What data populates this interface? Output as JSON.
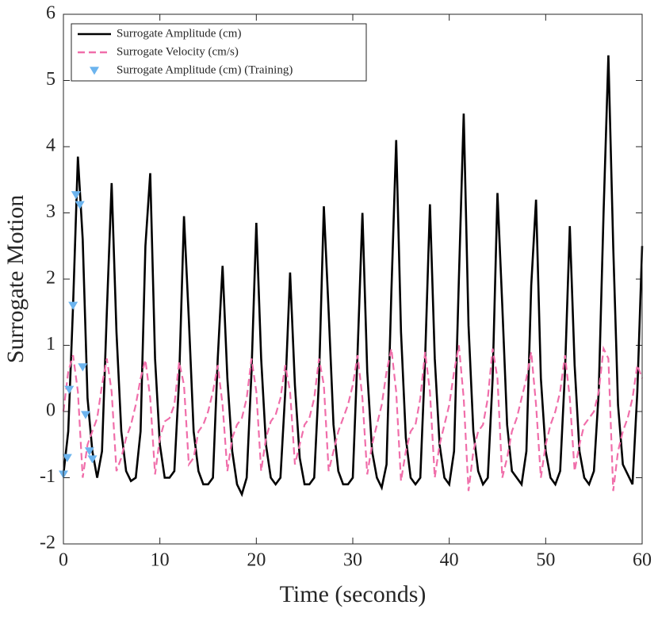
{
  "chart_data": {
    "type": "line",
    "xlabel": "Time (seconds)",
    "ylabel": "Surrogate Motion",
    "x": [
      0,
      0.5,
      1,
      1.5,
      2,
      2.5,
      3,
      3.5,
      4,
      4.5,
      5,
      5.5,
      6,
      6.5,
      7,
      7.5,
      8,
      8.5,
      9,
      9.5,
      10,
      10.5,
      11,
      11.5,
      12,
      12.5,
      13,
      13.5,
      14,
      14.5,
      15,
      15.5,
      16,
      16.5,
      17,
      17.5,
      18,
      18.5,
      19,
      19.5,
      20,
      20.5,
      21,
      21.5,
      22,
      22.5,
      23,
      23.5,
      24,
      24.5,
      25,
      25.5,
      26,
      26.5,
      27,
      27.5,
      28,
      28.5,
      29,
      29.5,
      30,
      30.5,
      31,
      31.5,
      32,
      32.5,
      33,
      33.5,
      34,
      34.5,
      35,
      35.5,
      36,
      36.5,
      37,
      37.5,
      38,
      38.5,
      39,
      39.5,
      40,
      40.5,
      41,
      41.5,
      42,
      42.5,
      43,
      43.5,
      44,
      44.5,
      45,
      45.5,
      46,
      46.5,
      47,
      47.5,
      48,
      48.5,
      49,
      49.5,
      50,
      50.5,
      51,
      51.5,
      52,
      52.5,
      53,
      53.5,
      54,
      54.5,
      55,
      55.5,
      56,
      56.5,
      57,
      57.5,
      58,
      58.5,
      59,
      59.5,
      60
    ],
    "series": [
      {
        "name": "Surrogate Amplitude (cm)",
        "color": "#000000",
        "dash": false,
        "values": [
          -0.95,
          -0.3,
          1.6,
          3.85,
          2.6,
          0.2,
          -0.6,
          -1.0,
          -0.6,
          1.5,
          3.45,
          1.2,
          -0.3,
          -0.9,
          -1.05,
          -1.0,
          -0.3,
          2.5,
          3.6,
          0.8,
          -0.5,
          -1.0,
          -1.0,
          -0.9,
          0.5,
          2.95,
          1.4,
          -0.3,
          -0.9,
          -1.1,
          -1.1,
          -1.0,
          0.8,
          2.2,
          0.5,
          -0.6,
          -1.1,
          -1.25,
          -1.0,
          0.6,
          2.85,
          0.8,
          -0.5,
          -1.0,
          -1.1,
          -1.0,
          0.3,
          2.1,
          0.4,
          -0.7,
          -1.1,
          -1.1,
          -1.0,
          0.5,
          3.1,
          1.5,
          -0.2,
          -0.9,
          -1.1,
          -1.1,
          -1.0,
          0.9,
          3.0,
          0.6,
          -0.6,
          -1.0,
          -1.15,
          -0.8,
          1.8,
          4.1,
          1.2,
          -0.4,
          -1.0,
          -1.1,
          -1.0,
          0.8,
          3.13,
          0.8,
          -0.5,
          -1.0,
          -1.1,
          -0.6,
          2.0,
          4.5,
          1.3,
          -0.3,
          -0.9,
          -1.1,
          -1.0,
          0.5,
          3.3,
          1.6,
          -0.2,
          -0.9,
          -1.0,
          -1.1,
          -0.6,
          1.9,
          3.2,
          0.5,
          -0.6,
          -1.0,
          -1.1,
          -0.9,
          0.6,
          2.8,
          0.7,
          -0.6,
          -1.0,
          -1.1,
          -0.9,
          0.3,
          3.0,
          5.38,
          2.5,
          0.1,
          -0.8,
          -0.95,
          -1.1,
          0.3,
          2.5
        ]
      },
      {
        "name": "Surrogate Velocity (cm/s)",
        "color": "#f06eaa",
        "dash": true,
        "values": [
          0.0,
          0.6,
          0.85,
          0.3,
          -1.0,
          -0.5,
          -0.3,
          -0.1,
          0.4,
          0.8,
          0.3,
          -0.9,
          -0.7,
          -0.4,
          -0.2,
          0.1,
          0.5,
          0.78,
          0.2,
          -0.95,
          -0.4,
          -0.15,
          -0.1,
          0.1,
          0.75,
          0.4,
          -0.8,
          -0.7,
          -0.3,
          -0.2,
          0.0,
          0.3,
          0.7,
          0.1,
          -0.9,
          -0.4,
          -0.2,
          -0.1,
          0.2,
          0.8,
          0.3,
          -0.9,
          -0.4,
          -0.15,
          -0.05,
          0.2,
          0.7,
          0.3,
          -0.8,
          -0.5,
          -0.2,
          -0.1,
          0.2,
          0.8,
          0.4,
          -0.9,
          -0.6,
          -0.3,
          -0.1,
          0.1,
          0.4,
          0.85,
          0.2,
          -0.95,
          -0.5,
          -0.2,
          0.1,
          0.6,
          0.95,
          0.3,
          -1.05,
          -0.6,
          -0.3,
          -0.2,
          0.2,
          0.9,
          0.3,
          -1.0,
          -0.5,
          -0.2,
          0.1,
          0.6,
          1.0,
          0.2,
          -1.2,
          -0.6,
          -0.3,
          -0.2,
          0.2,
          0.95,
          0.5,
          -1.0,
          -0.7,
          -0.3,
          -0.1,
          0.2,
          0.5,
          0.9,
          0.1,
          -1.0,
          -0.5,
          -0.2,
          0.0,
          0.3,
          0.85,
          0.2,
          -0.9,
          -0.5,
          -0.2,
          -0.1,
          0.0,
          0.3,
          0.95,
          0.8,
          -1.2,
          -0.6,
          -0.3,
          -0.1,
          0.2,
          0.7,
          0.5
        ]
      },
      {
        "name": "Surrogate Amplitude (cm) (Training)",
        "color": "#6cb4ee",
        "marker": "triangle-down",
        "x": [
          0.0,
          0.4,
          0.6,
          1.0,
          1.3,
          1.7,
          2.0,
          2.3,
          2.7,
          3.0
        ],
        "values": [
          -0.95,
          -0.7,
          0.33,
          1.6,
          3.27,
          3.12,
          0.67,
          -0.05,
          -0.6,
          -0.72
        ]
      }
    ],
    "xlim": [
      0,
      60
    ],
    "xticks": [
      0,
      10,
      20,
      30,
      40,
      50,
      60
    ],
    "ylim": [
      -2,
      6
    ],
    "yticks": [
      -2,
      -1,
      0,
      1,
      2,
      3,
      4,
      5,
      6
    ],
    "legend": "upper left"
  }
}
